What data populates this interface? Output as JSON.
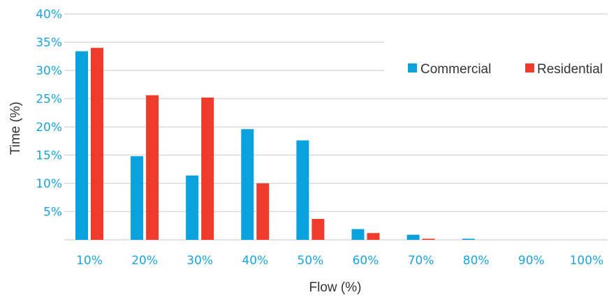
{
  "chart_data": {
    "type": "bar",
    "title": "",
    "xlabel": "Flow (%)",
    "ylabel": "Time (%)",
    "categories": [
      "10%",
      "20%",
      "30%",
      "40%",
      "50%",
      "60%",
      "70%",
      "80%",
      "90%",
      "100%"
    ],
    "series": [
      {
        "name": "Commercial",
        "color": "#0aa2de",
        "values": [
          33.4,
          14.8,
          11.4,
          19.6,
          17.6,
          1.9,
          0.9,
          0.2,
          0,
          0
        ]
      },
      {
        "name": "Residential",
        "color": "#ef3b2c",
        "values": [
          34.0,
          25.6,
          25.2,
          10.0,
          3.7,
          1.2,
          0.2,
          0,
          0,
          0
        ]
      }
    ],
    "ylim": [
      0,
      40
    ],
    "yticks": [
      "5%",
      "10%",
      "15%",
      "20%",
      "25%",
      "30%",
      "35%",
      "40%"
    ],
    "ytick_values": [
      5,
      10,
      15,
      20,
      25,
      30,
      35,
      40
    ],
    "grid": true,
    "legend_position": "top-right"
  }
}
